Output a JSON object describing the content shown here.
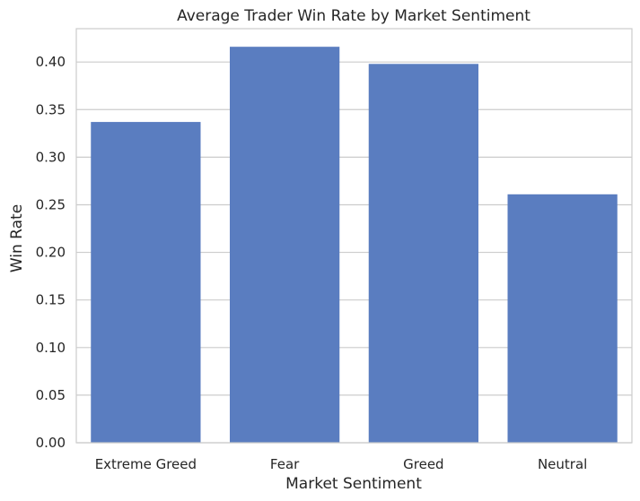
{
  "chart_data": {
    "type": "bar",
    "title": "Average Trader Win Rate by Market Sentiment",
    "xlabel": "Market Sentiment",
    "ylabel": "Win Rate",
    "categories": [
      "Extreme Greed",
      "Fear",
      "Greed",
      "Neutral"
    ],
    "values": [
      0.337,
      0.416,
      0.398,
      0.261
    ],
    "ylim": [
      0,
      0.435
    ],
    "yticks": [
      "0.00",
      "0.05",
      "0.10",
      "0.15",
      "0.20",
      "0.25",
      "0.30",
      "0.35",
      "0.40"
    ],
    "grid": "horizontal",
    "colors": {
      "bar": "#5a7dc0",
      "grid": "#cccccc",
      "spine": "#cccccc"
    }
  }
}
